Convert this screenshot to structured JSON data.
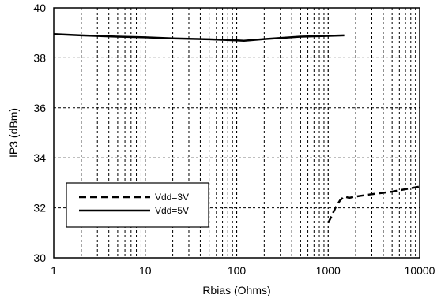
{
  "chart_data": {
    "type": "line",
    "title": "",
    "xlabel": "Rbias (Ohms)",
    "ylabel": "IP3 (dBm)",
    "x_scale": "log",
    "xlim": [
      1,
      10000
    ],
    "ylim": [
      30,
      40
    ],
    "x_ticks": [
      "1",
      "10",
      "100",
      "1000",
      "10000"
    ],
    "y_ticks": [
      "30",
      "32",
      "34",
      "36",
      "38",
      "40"
    ],
    "grid": true,
    "legend_position": "lower-left",
    "series": [
      {
        "name": "Vdd=3V",
        "style": "dashed",
        "color": "#000000",
        "x": [
          1000,
          1050,
          1100,
          1200,
          1350,
          1500,
          1700,
          2000,
          3000,
          5000,
          10000
        ],
        "y": [
          31.4,
          31.55,
          31.7,
          32.0,
          32.3,
          32.45,
          32.4,
          32.45,
          32.55,
          32.65,
          32.85
        ]
      },
      {
        "name": "Vdd=5V",
        "style": "solid",
        "color": "#000000",
        "x": [
          1,
          2,
          5,
          10,
          20,
          50,
          100,
          120,
          200,
          500,
          1000,
          1500
        ],
        "y": [
          38.95,
          38.9,
          38.85,
          38.82,
          38.78,
          38.74,
          38.7,
          38.68,
          38.75,
          38.85,
          38.88,
          38.9
        ]
      }
    ]
  }
}
